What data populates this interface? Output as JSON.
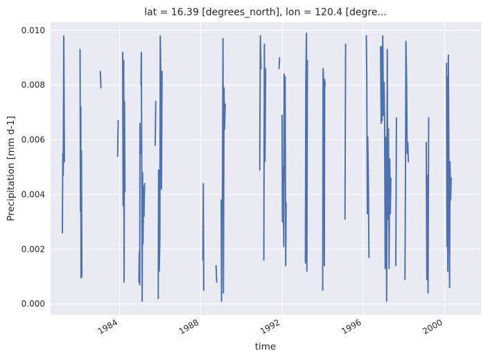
{
  "chart_data": {
    "type": "line",
    "title": "lat = 16.39 [degrees_north], lon = 120.4 [degre...",
    "xlabel": "time",
    "ylabel": "Precipitation [mm d-1]",
    "xlim": [
      1980.6,
      2001.8
    ],
    "ylim": [
      -0.0004,
      0.0103
    ],
    "x_ticks": [
      1984,
      1988,
      1992,
      1996,
      2000
    ],
    "y_ticks": [
      "0.000",
      "0.002",
      "0.004",
      "0.006",
      "0.008",
      "0.010"
    ],
    "grid": true,
    "legend": "none",
    "colors": {
      "line": "#4c72b0",
      "axes_background": "#eaeaf2",
      "grid": "#ffffff"
    },
    "series": [
      {
        "segments": [
          [
            [
              1981.18,
              0.0026
            ],
            [
              1981.2,
              0.0055
            ],
            [
              1981.22,
              0.0047
            ],
            [
              1981.25,
              0.0098
            ],
            [
              1981.28,
              0.0052
            ]
          ],
          [
            [
              1982.05,
              0.0093
            ],
            [
              1982.07,
              0.0034
            ],
            [
              1982.09,
              0.0072
            ],
            [
              1982.1,
              0.00095
            ],
            [
              1982.12,
              0.0056
            ],
            [
              1982.14,
              0.001
            ]
          ],
          [
            [
              1983.05,
              0.0085
            ],
            [
              1983.08,
              0.0079
            ]
          ],
          [
            [
              1983.9,
              0.0054
            ],
            [
              1983.93,
              0.0067
            ]
          ],
          [
            [
              1984.15,
              0.0092
            ],
            [
              1984.17,
              0.0036
            ],
            [
              1984.2,
              0.0089
            ],
            [
              1984.22,
              0.0008
            ],
            [
              1984.24,
              0.0074
            ],
            [
              1984.26,
              0.0041
            ]
          ],
          [
            [
              1984.95,
              0.0008
            ],
            [
              1984.97,
              0.0019
            ],
            [
              1984.99,
              0.0007
            ],
            [
              1985.0,
              0.0066
            ],
            [
              1985.02,
              0.0055
            ]
          ],
          [
            [
              1985.05,
              0.008
            ],
            [
              1985.07,
              0.0092
            ],
            [
              1985.09,
              0.0049
            ],
            [
              1985.11,
              0.0001
            ],
            [
              1985.13,
              0.0048
            ],
            [
              1985.15,
              0.0022
            ],
            [
              1985.18,
              0.0043
            ],
            [
              1985.2,
              0.0032
            ],
            [
              1985.23,
              0.0044
            ]
          ],
          [
            [
              1985.75,
              0.0058
            ],
            [
              1985.78,
              0.0074
            ]
          ],
          [
            [
              1985.9,
              0.0002
            ],
            [
              1985.92,
              0.0049
            ],
            [
              1985.95,
              0.0012
            ],
            [
              1985.98,
              0.0023
            ],
            [
              1986.0,
              0.0098
            ],
            [
              1986.03,
              0.008
            ],
            [
              1986.06,
              0.0042
            ],
            [
              1986.09,
              0.0085
            ]
          ],
          [
            [
              1988.1,
              0.0016
            ],
            [
              1988.12,
              0.0044
            ],
            [
              1988.14,
              0.0005
            ]
          ],
          [
            [
              1988.75,
              0.0014
            ],
            [
              1988.78,
              0.0008
            ]
          ],
          [
            [
              1989.0,
              0.0038
            ],
            [
              1989.02,
              0.0001
            ],
            [
              1989.04,
              0.0038
            ],
            [
              1989.06,
              0.0035
            ],
            [
              1989.09,
              0.0097
            ],
            [
              1989.11,
              0.0004
            ],
            [
              1989.14,
              0.0079
            ],
            [
              1989.17,
              0.0064
            ],
            [
              1989.2,
              0.0073
            ]
          ],
          [
            [
              1990.9,
              0.0049
            ],
            [
              1990.93,
              0.0098
            ],
            [
              1990.96,
              0.0086
            ]
          ],
          [
            [
              1991.1,
              0.0016
            ],
            [
              1991.13,
              0.0095
            ],
            [
              1991.16,
              0.0052
            ],
            [
              1991.19,
              0.0086
            ]
          ],
          [
            [
              1991.85,
              0.0086
            ],
            [
              1991.88,
              0.009
            ]
          ],
          [
            [
              1992.0,
              0.0069
            ],
            [
              1992.02,
              0.003
            ],
            [
              1992.05,
              0.005
            ],
            [
              1992.08,
              0.0021
            ],
            [
              1992.1,
              0.0084
            ],
            [
              1992.12,
              0.0045
            ],
            [
              1992.15,
              0.0083
            ],
            [
              1992.18,
              0.0014
            ],
            [
              1992.2,
              0.0037
            ]
          ],
          [
            [
              1993.15,
              0.0015
            ],
            [
              1993.17,
              0.0081
            ],
            [
              1993.2,
              0.0099
            ],
            [
              1993.22,
              0.0012
            ],
            [
              1993.25,
              0.0089
            ]
          ],
          [
            [
              1994.0,
              0.0005
            ],
            [
              1994.02,
              0.0086
            ],
            [
              1994.05,
              0.0081
            ],
            [
              1994.08,
              0.0014
            ],
            [
              1994.1,
              0.0082
            ],
            [
              1994.12,
              0.008
            ]
          ],
          [
            [
              1995.1,
              0.0031
            ],
            [
              1995.13,
              0.0095
            ]
          ],
          [
            [
              1996.15,
              0.0098
            ],
            [
              1996.17,
              0.0083
            ],
            [
              1996.2,
              0.0033
            ],
            [
              1996.22,
              0.0061
            ],
            [
              1996.25,
              0.0046
            ],
            [
              1996.28,
              0.0017
            ]
          ],
          [
            [
              1996.85,
              0.0094
            ],
            [
              1996.88,
              0.0066
            ],
            [
              1996.9,
              0.0094
            ],
            [
              1996.93,
              0.0067
            ],
            [
              1996.96,
              0.0098
            ],
            [
              1996.99,
              0.0069
            ],
            [
              1997.02,
              0.0081
            ],
            [
              1997.05,
              0.0066
            ],
            [
              1997.08,
              0.0013
            ],
            [
              1997.1,
              0.0061
            ],
            [
              1997.12,
              0.0048
            ],
            [
              1997.15,
              0.0001
            ],
            [
              1997.18,
              0.0093
            ],
            [
              1997.21,
              0.0031
            ],
            [
              1997.24,
              0.0064
            ],
            [
              1997.27,
              0.0013
            ],
            [
              1997.3,
              0.0053
            ],
            [
              1997.33,
              0.0033
            ],
            [
              1997.36,
              0.0046
            ]
          ],
          [
            [
              1997.6,
              0.0014
            ],
            [
              1997.63,
              0.0068
            ]
          ],
          [
            [
              1998.05,
              0.0009
            ],
            [
              1998.08,
              0.0048
            ],
            [
              1998.1,
              0.0096
            ],
            [
              1998.13,
              0.0083
            ],
            [
              1998.16,
              0.0055
            ],
            [
              1998.19,
              0.0059
            ],
            [
              1998.22,
              0.0052
            ]
          ],
          [
            [
              1999.1,
              0.0059
            ],
            [
              1999.13,
              0.0009
            ],
            [
              1999.16,
              0.0047
            ],
            [
              1999.19,
              0.0004
            ],
            [
              1999.22,
              0.0068
            ]
          ],
          [
            [
              2000.1,
              0.0088
            ],
            [
              2000.12,
              0.0021
            ],
            [
              2000.14,
              0.0083
            ],
            [
              2000.16,
              0.0012
            ],
            [
              2000.19,
              0.0091
            ],
            [
              2000.22,
              0.0047
            ],
            [
              2000.25,
              0.0006
            ],
            [
              2000.27,
              0.0052
            ],
            [
              2000.3,
              0.0038
            ],
            [
              2000.33,
              0.0046
            ]
          ]
        ]
      }
    ]
  }
}
